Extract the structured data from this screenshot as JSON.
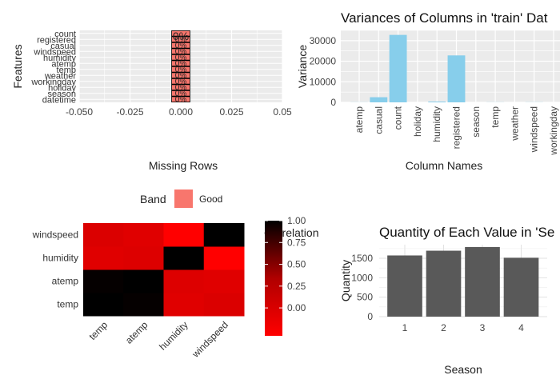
{
  "chart_data": [
    {
      "type": "bar",
      "orientation": "horizontal",
      "title": "",
      "xlabel": "Missing Rows",
      "ylabel": "Features",
      "categories": [
        "datetime",
        "season",
        "holiday",
        "workingday",
        "weather",
        "temp",
        "atemp",
        "humidity",
        "windspeed",
        "casual",
        "registered",
        "count"
      ],
      "values": [
        0,
        0,
        0,
        0,
        0,
        0,
        0,
        0,
        0,
        0,
        0,
        0
      ],
      "bar_labels": [
        "0%",
        "0%",
        "0%",
        "0%",
        "0%",
        "0%",
        "0%",
        "0%",
        "0%",
        "0%",
        "0%",
        "0%"
      ],
      "xlim": [
        -0.05,
        0.05
      ],
      "xticks": [
        "-0.050",
        "-0.025",
        "0.000",
        "0.025",
        "0.05"
      ],
      "fill": "#F8766D",
      "legend": {
        "title": "Band",
        "entries": [
          {
            "label": "Good",
            "color": "#F8766D"
          }
        ],
        "position": "bottom"
      },
      "grid": true
    },
    {
      "type": "bar",
      "title": "Variances of Columns in 'train' Dat",
      "xlabel": "Column Names",
      "ylabel": "Variance",
      "categories": [
        "atemp",
        "casual",
        "count",
        "holiday",
        "humidity",
        "registered",
        "season",
        "temp",
        "weather",
        "windspeed",
        "workingday"
      ],
      "values": [
        56,
        2497,
        32805,
        0.03,
        373,
        22830,
        1.2,
        61,
        0.4,
        67,
        0.22
      ],
      "ylim": [
        0,
        35000
      ],
      "yticks": [
        0,
        10000,
        20000,
        30000
      ],
      "fill": "#87CEEB",
      "grid": true
    },
    {
      "type": "heatmap",
      "title": "",
      "x": [
        "temp",
        "atemp",
        "humidity",
        "windspeed"
      ],
      "y": [
        "temp",
        "atemp",
        "humidity",
        "windspeed"
      ],
      "values": [
        [
          1.0,
          0.98,
          -0.06,
          -0.02
        ],
        [
          0.98,
          1.0,
          -0.04,
          -0.06
        ],
        [
          -0.06,
          -0.04,
          1.0,
          -0.32
        ],
        [
          -0.02,
          -0.06,
          -0.32,
          1.0
        ]
      ],
      "colorbar": {
        "title": "Correlation",
        "ticks": [
          "1.00",
          "0.75",
          "0.50",
          "0.25",
          "0.00"
        ],
        "range": [
          -0.32,
          1.0
        ],
        "low_color": "#FF0000",
        "high_color": "#000000"
      }
    },
    {
      "type": "bar",
      "title": "Quantity of Each Value in 'Se",
      "xlabel": "Season",
      "ylabel": "Quantity",
      "categories": [
        "1",
        "2",
        "3",
        "4"
      ],
      "values": [
        1573,
        1695,
        1790,
        1514
      ],
      "ylim": [
        0,
        1850
      ],
      "yticks": [
        0,
        500,
        1000,
        1500
      ],
      "fill": "#595959",
      "grid": true
    }
  ]
}
